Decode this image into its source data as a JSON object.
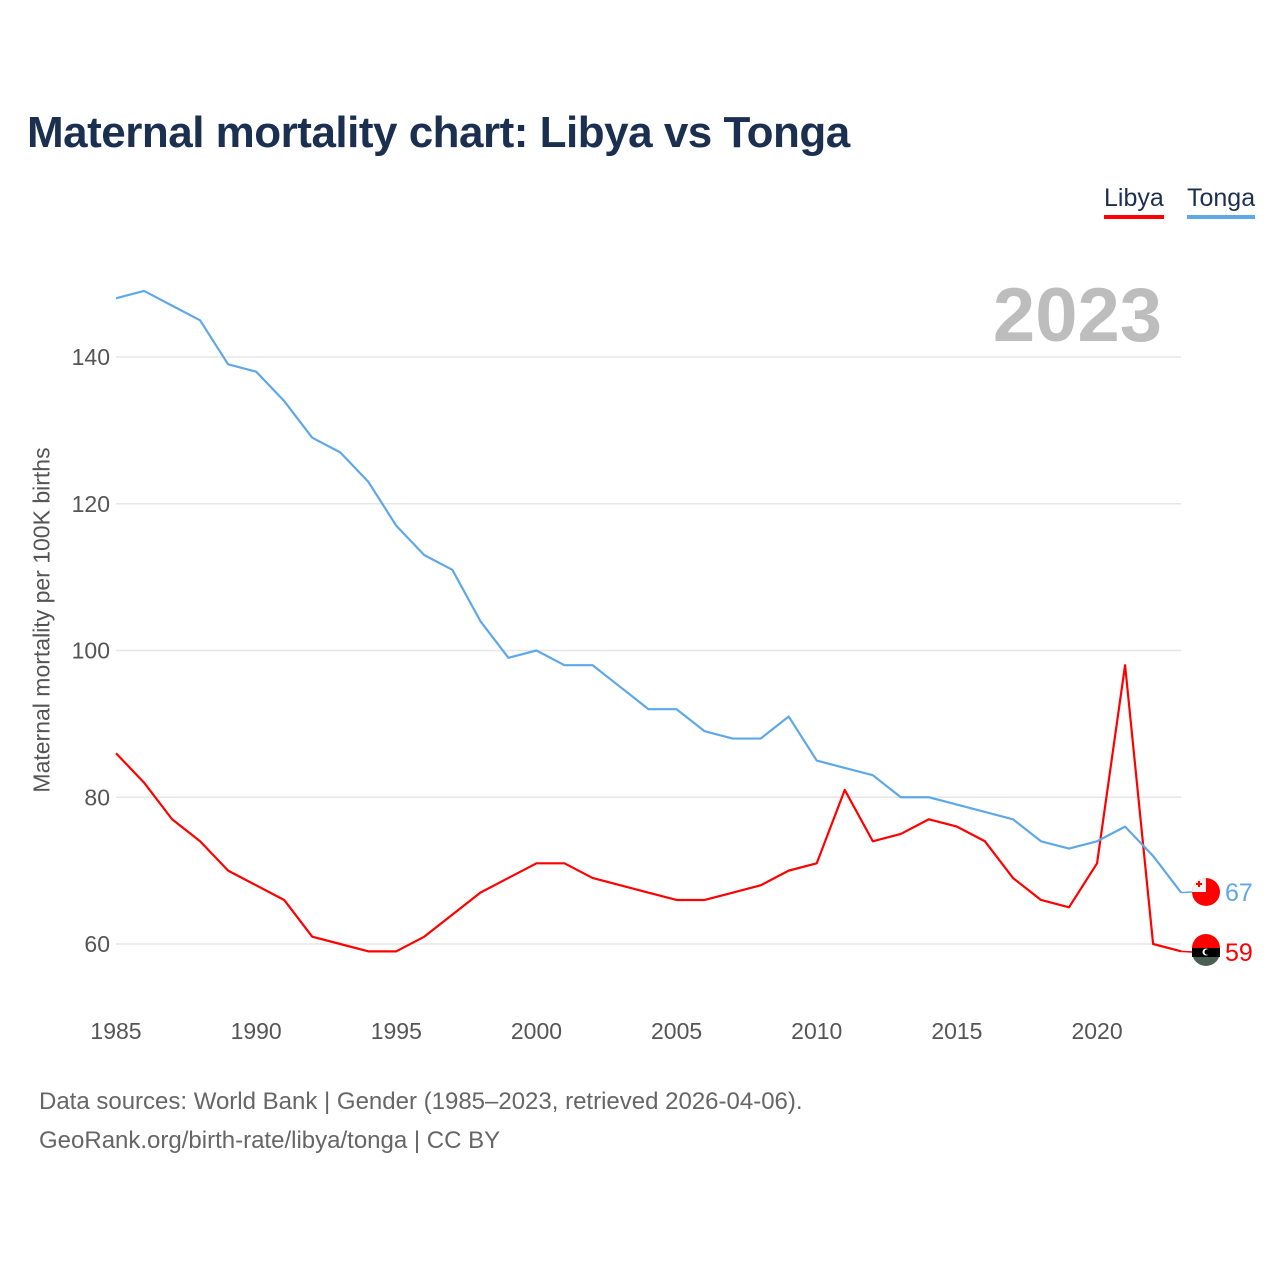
{
  "chart_data": {
    "type": "line",
    "title": "Maternal mortality chart: Libya vs Tonga",
    "ylabel": "Maternal mortality per 100K births",
    "xlabel": "",
    "year_label": "2023",
    "xlim": [
      1985,
      2023
    ],
    "ylim": [
      55,
      150
    ],
    "x_ticks": [
      1985,
      1990,
      1995,
      2000,
      2005,
      2010,
      2015,
      2020
    ],
    "y_ticks": [
      60,
      80,
      100,
      120,
      140
    ],
    "grid": true,
    "legend_position": "top-right",
    "x": [
      1985,
      1986,
      1987,
      1988,
      1989,
      1990,
      1991,
      1992,
      1993,
      1994,
      1995,
      1996,
      1997,
      1998,
      1999,
      2000,
      2001,
      2002,
      2003,
      2004,
      2005,
      2006,
      2007,
      2008,
      2009,
      2010,
      2011,
      2012,
      2013,
      2014,
      2015,
      2016,
      2017,
      2018,
      2019,
      2020,
      2021,
      2022,
      2023
    ],
    "series": [
      {
        "name": "Libya",
        "color": "#ff0000",
        "end_label": "59",
        "values": [
          86,
          82,
          77,
          74,
          70,
          68,
          66,
          61,
          60,
          59,
          59,
          61,
          64,
          67,
          69,
          71,
          71,
          69,
          68,
          67,
          66,
          66,
          67,
          68,
          70,
          71,
          81,
          74,
          75,
          77,
          76,
          74,
          69,
          66,
          65,
          71,
          98,
          60,
          59
        ]
      },
      {
        "name": "Tonga",
        "color": "#5fa8e8",
        "end_label": "67",
        "values": [
          148,
          149,
          147,
          145,
          139,
          138,
          134,
          129,
          127,
          123,
          117,
          113,
          111,
          104,
          99,
          100,
          98,
          98,
          95,
          92,
          92,
          89,
          88,
          88,
          91,
          85,
          84,
          83,
          80,
          80,
          79,
          78,
          77,
          74,
          73,
          74,
          76,
          72,
          67
        ]
      }
    ]
  },
  "footer": {
    "line1": "Data sources: World Bank | Gender (1985–2023, retrieved 2026-04-06).",
    "line2": "GeoRank.org/birth-rate/libya/tonga | CC BY"
  }
}
